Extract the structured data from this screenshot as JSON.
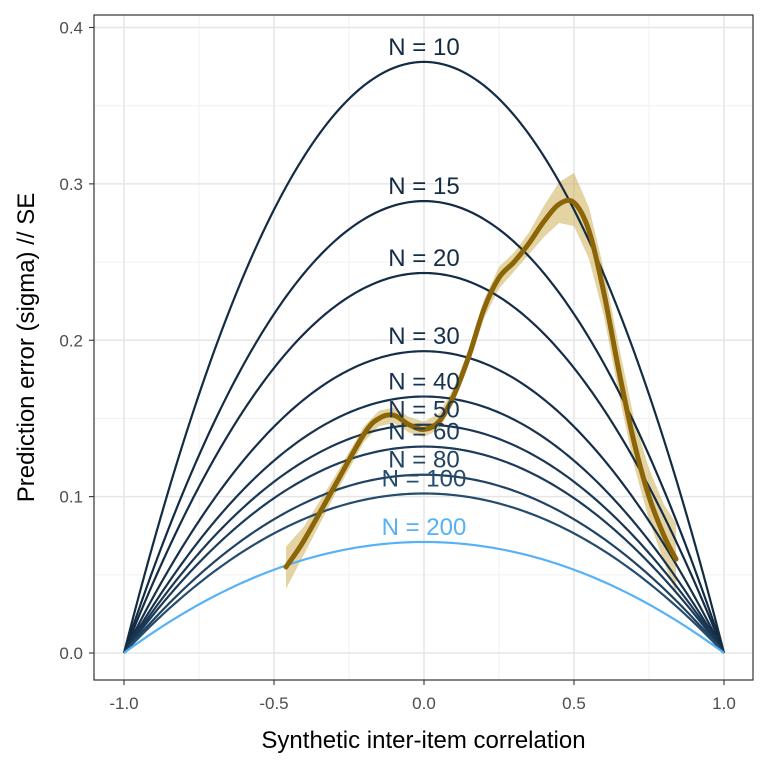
{
  "chart_data": {
    "type": "line",
    "xlabel": "Synthetic inter-item correlation",
    "ylabel": "Prediction error (sigma) // SE",
    "xlim": [
      -1.0,
      1.0
    ],
    "ylim": [
      0.0,
      0.4
    ],
    "x_ticks": [
      "-1.0",
      "-0.5",
      "0.0",
      "0.5",
      "1.0"
    ],
    "y_ticks": [
      "0.0",
      "0.1",
      "0.2",
      "0.3",
      "0.4"
    ],
    "grid": true,
    "series": [
      {
        "name": "N = 10",
        "N": 10,
        "peak": 0.378,
        "color": "#132B43"
      },
      {
        "name": "N = 15",
        "N": 15,
        "peak": 0.289,
        "color": "#132B43"
      },
      {
        "name": "N = 20",
        "N": 20,
        "peak": 0.243,
        "color": "#142C45"
      },
      {
        "name": "N = 30",
        "N": 30,
        "peak": 0.193,
        "color": "#162F49"
      },
      {
        "name": "N = 40",
        "N": 40,
        "peak": 0.164,
        "color": "#18334E"
      },
      {
        "name": "N = 50",
        "N": 50,
        "peak": 0.146,
        "color": "#1A3753"
      },
      {
        "name": "N = 60",
        "N": 60,
        "peak": 0.132,
        "color": "#1C3B58"
      },
      {
        "name": "N = 80",
        "N": 80,
        "peak": 0.114,
        "color": "#214361"
      },
      {
        "name": "N = 100",
        "N": 100,
        "peak": 0.102,
        "color": "#264C6D"
      },
      {
        "name": "N = 200",
        "N": 200,
        "peak": 0.071,
        "color": "#56B1F7"
      }
    ],
    "smooth": {
      "color": "#8B6508",
      "band_color": "#C9A94A",
      "points": [
        {
          "x": -0.46,
          "y": 0.055,
          "lo": 0.041,
          "hi": 0.068
        },
        {
          "x": -0.4,
          "y": 0.072,
          "lo": 0.063,
          "hi": 0.081
        },
        {
          "x": -0.3,
          "y": 0.106,
          "lo": 0.1,
          "hi": 0.112
        },
        {
          "x": -0.2,
          "y": 0.14,
          "lo": 0.135,
          "hi": 0.145
        },
        {
          "x": -0.15,
          "y": 0.15,
          "lo": 0.145,
          "hi": 0.155
        },
        {
          "x": -0.1,
          "y": 0.152,
          "lo": 0.147,
          "hi": 0.157
        },
        {
          "x": -0.05,
          "y": 0.146,
          "lo": 0.141,
          "hi": 0.151
        },
        {
          "x": 0.0,
          "y": 0.143,
          "lo": 0.138,
          "hi": 0.148
        },
        {
          "x": 0.05,
          "y": 0.148,
          "lo": 0.143,
          "hi": 0.153
        },
        {
          "x": 0.1,
          "y": 0.165,
          "lo": 0.16,
          "hi": 0.17
        },
        {
          "x": 0.15,
          "y": 0.19,
          "lo": 0.185,
          "hi": 0.195
        },
        {
          "x": 0.2,
          "y": 0.22,
          "lo": 0.214,
          "hi": 0.226
        },
        {
          "x": 0.25,
          "y": 0.24,
          "lo": 0.233,
          "hi": 0.247
        },
        {
          "x": 0.3,
          "y": 0.25,
          "lo": 0.244,
          "hi": 0.256
        },
        {
          "x": 0.35,
          "y": 0.262,
          "lo": 0.255,
          "hi": 0.269
        },
        {
          "x": 0.4,
          "y": 0.276,
          "lo": 0.266,
          "hi": 0.286
        },
        {
          "x": 0.45,
          "y": 0.287,
          "lo": 0.275,
          "hi": 0.301
        },
        {
          "x": 0.5,
          "y": 0.288,
          "lo": 0.273,
          "hi": 0.307
        },
        {
          "x": 0.55,
          "y": 0.27,
          "lo": 0.252,
          "hi": 0.285
        },
        {
          "x": 0.6,
          "y": 0.23,
          "lo": 0.215,
          "hi": 0.245
        },
        {
          "x": 0.65,
          "y": 0.18,
          "lo": 0.165,
          "hi": 0.196
        },
        {
          "x": 0.7,
          "y": 0.135,
          "lo": 0.12,
          "hi": 0.15
        },
        {
          "x": 0.75,
          "y": 0.1,
          "lo": 0.085,
          "hi": 0.118
        },
        {
          "x": 0.8,
          "y": 0.075,
          "lo": 0.058,
          "hi": 0.095
        },
        {
          "x": 0.84,
          "y": 0.06,
          "lo": 0.038,
          "hi": 0.083
        }
      ]
    }
  }
}
